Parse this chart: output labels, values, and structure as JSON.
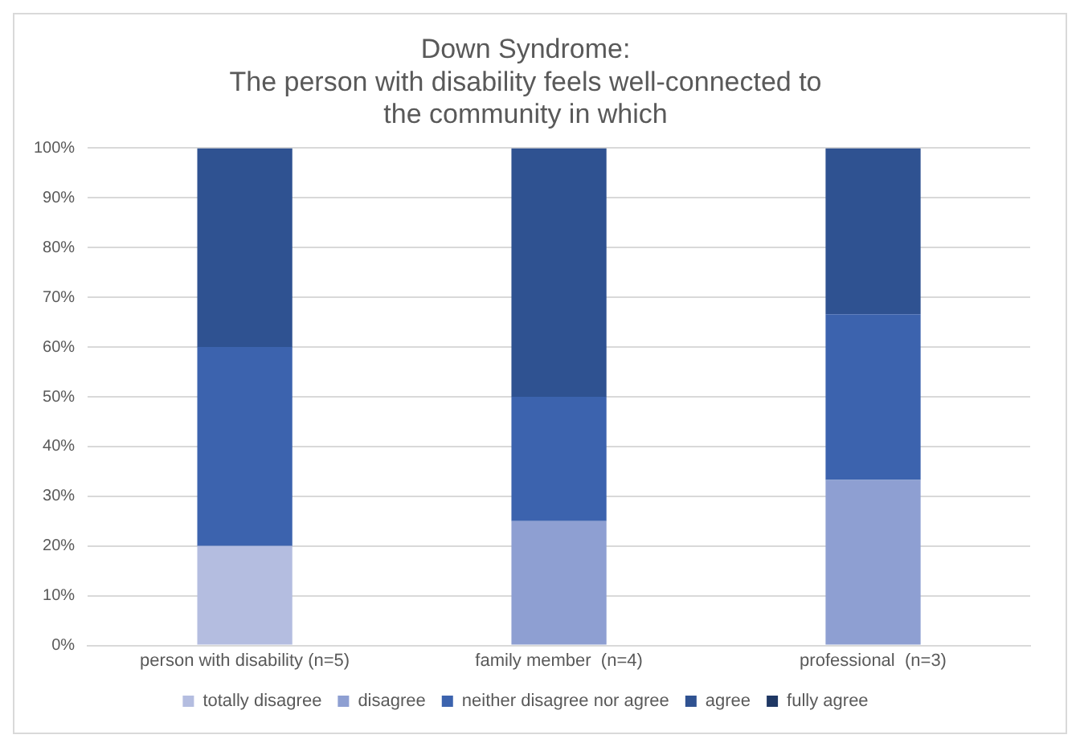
{
  "chart_data": {
    "type": "bar",
    "stacked": true,
    "title": [
      "Down Syndrome:",
      "The person with disability feels well-connected to",
      "the community in which"
    ],
    "categories": [
      "person with disability (n=5)",
      "family member  (n=4)",
      "professional  (n=3)"
    ],
    "series": [
      {
        "name": "totally disagree",
        "color": "#b4bde0",
        "values": [
          20,
          0,
          0
        ]
      },
      {
        "name": "disagree",
        "color": "#8e9fd2",
        "values": [
          0,
          25,
          33.3
        ]
      },
      {
        "name": "neither disagree nor agree",
        "color": "#3c63ae",
        "values": [
          40,
          25,
          33.3
        ]
      },
      {
        "name": "agree",
        "color": "#2f5291",
        "values": [
          40,
          50,
          33.4
        ]
      },
      {
        "name": "fully agree",
        "color": "#1f3864",
        "values": [
          0,
          0,
          0
        ]
      }
    ],
    "ylim": [
      0,
      100
    ],
    "yticks": [
      {
        "value": 0,
        "label": "0%"
      },
      {
        "value": 10,
        "label": "10%"
      },
      {
        "value": 20,
        "label": "20%"
      },
      {
        "value": 30,
        "label": "30%"
      },
      {
        "value": 40,
        "label": "40%"
      },
      {
        "value": 50,
        "label": "50%"
      },
      {
        "value": 60,
        "label": "60%"
      },
      {
        "value": 70,
        "label": "70%"
      },
      {
        "value": 80,
        "label": "80%"
      },
      {
        "value": 90,
        "label": "90%"
      },
      {
        "value": 100,
        "label": "100%"
      }
    ],
    "grid": "y",
    "legend": "bottom"
  }
}
